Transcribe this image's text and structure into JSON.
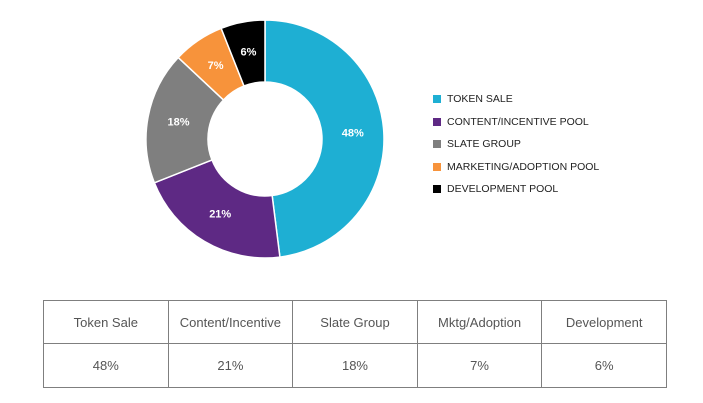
{
  "chart_data": {
    "type": "pie",
    "variant": "donut",
    "labels": [
      "TOKEN SALE",
      "CONTENT/INCENTIVE POOL",
      "SLATE GROUP",
      "MARKETING/ADOPTION POOL",
      "DEVELOPMENT POOL"
    ],
    "values": [
      48,
      21,
      18,
      7,
      6
    ],
    "value_labels": [
      "48%",
      "21%",
      "18%",
      "7%",
      "6%"
    ],
    "colors": [
      "#1eafd3",
      "#5e2984",
      "#7f7f7f",
      "#f7933b",
      "#000000"
    ],
    "legend_position": "right"
  },
  "table": {
    "headers": [
      "Token Sale",
      "Content/Incentive",
      "Slate Group",
      "Mktg/Adoption",
      "Development"
    ],
    "values": [
      "48%",
      "21%",
      "18%",
      "7%",
      "6%"
    ]
  }
}
